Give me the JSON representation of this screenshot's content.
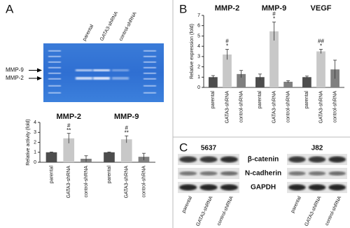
{
  "panel_labels": [
    "A",
    "B",
    "C"
  ],
  "gel": {
    "lanes": [
      "parental",
      "GATA3-shRNA",
      "control-shRNA"
    ],
    "bands": [
      "MMP-9",
      "MMP-2"
    ]
  },
  "chart_data": [
    {
      "type": "bar",
      "ylabel": "Relative activity (fold)",
      "ylim": [
        0,
        4
      ],
      "yticks": [
        0,
        1,
        2,
        3,
        4
      ],
      "categories": [
        "parental",
        "GATA3-shRNA",
        "control-shRNA"
      ],
      "colors": [
        "#4d4d4d",
        "#c8c8c8",
        "#7f7f7f"
      ],
      "series": [
        {
          "name": "MMP-2",
          "values": [
            1.0,
            2.4,
            0.35
          ],
          "errors": [
            0.03,
            0.5,
            0.3
          ],
          "annotations": [
            null,
            [
              "#",
              "**"
            ],
            null
          ]
        },
        {
          "name": "MMP-9",
          "values": [
            1.0,
            2.3,
            0.55
          ],
          "errors": [
            0.03,
            0.35,
            0.35
          ],
          "annotations": [
            null,
            [
              "#",
              "**"
            ],
            null
          ]
        }
      ]
    },
    {
      "type": "bar",
      "ylabel": "Relative expression (fold)",
      "ylim": [
        0,
        7
      ],
      "yticks": [
        0,
        1,
        2,
        3,
        4,
        5,
        6,
        7
      ],
      "categories": [
        "parental",
        "GATA3-shRNA",
        "control-shRNA"
      ],
      "colors": [
        "#4d4d4d",
        "#c8c8c8",
        "#7f7f7f"
      ],
      "series": [
        {
          "name": "MMP-2",
          "values": [
            1.0,
            3.2,
            1.3
          ],
          "errors": [
            0.15,
            0.5,
            0.35
          ],
          "annotations": [
            null,
            [
              "#",
              "*"
            ],
            null
          ]
        },
        {
          "name": "MMP-9",
          "values": [
            1.0,
            5.45,
            0.55
          ],
          "errors": [
            0.3,
            0.9,
            0.1
          ],
          "annotations": [
            null,
            [
              "#",
              "*"
            ],
            null
          ]
        },
        {
          "name": "VEGF",
          "values": [
            1.0,
            3.5,
            1.75
          ],
          "errors": [
            0.1,
            0.2,
            0.9
          ],
          "annotations": [
            null,
            [
              "##",
              "*"
            ],
            null
          ]
        }
      ]
    }
  ],
  "blot": {
    "cell_lines": [
      "5637",
      "J82"
    ],
    "proteins": [
      "β-catenin",
      "N-cadherin",
      "GAPDH"
    ],
    "lanes": [
      "parental",
      "GATA3-shRNA",
      "control-shRNA"
    ]
  }
}
